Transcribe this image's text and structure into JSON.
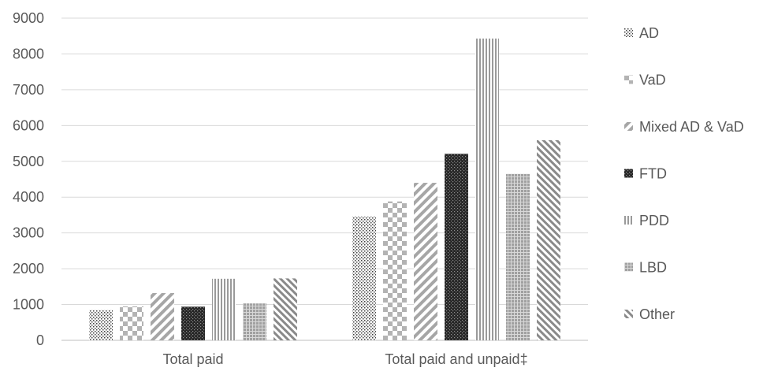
{
  "chart_data": {
    "type": "bar",
    "title": "",
    "xlabel": "",
    "ylabel": "",
    "categories": [
      "Total paid",
      "Total paid and unpaid‡"
    ],
    "ylim": [
      0,
      9000
    ],
    "yticks": [
      0,
      1000,
      2000,
      3000,
      4000,
      5000,
      6000,
      7000,
      8000,
      9000
    ],
    "grid": true,
    "legend_position": "right",
    "series": [
      {
        "name": "AD",
        "values": [
          850,
          3460
        ],
        "pattern": "dots-small"
      },
      {
        "name": "VaD",
        "values": [
          950,
          3880
        ],
        "pattern": "checker"
      },
      {
        "name": "Mixed AD & VaD",
        "values": [
          1320,
          4400
        ],
        "pattern": "diag-wide"
      },
      {
        "name": "FTD",
        "values": [
          940,
          5210
        ],
        "pattern": "dots-dark"
      },
      {
        "name": "PDD",
        "values": [
          1720,
          8430
        ],
        "pattern": "vertical"
      },
      {
        "name": "LBD",
        "values": [
          1030,
          4650
        ],
        "pattern": "grid-gray"
      },
      {
        "name": "Other",
        "values": [
          1730,
          5590
        ],
        "pattern": "diag-dense"
      }
    ]
  },
  "colors": {
    "gridline": "#d9d9d9",
    "axis": "#bfbfbf",
    "text": "#595959",
    "dark_pattern": "#262626",
    "mid_pattern": "#7f7f7f",
    "light_pattern": "#a6a6a6"
  }
}
